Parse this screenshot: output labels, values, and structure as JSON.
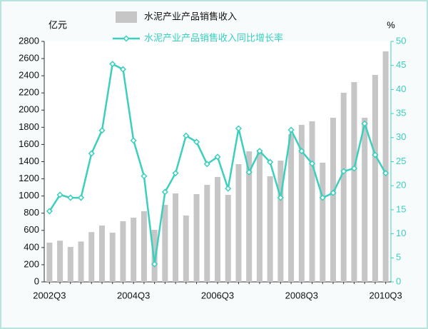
{
  "chart_data": {
    "type": "bar_line",
    "y_unit": "亿元",
    "y2_unit": "%",
    "categories": [
      "2002Q3",
      null,
      null,
      null,
      null,
      null,
      null,
      null,
      "2004Q3",
      null,
      null,
      null,
      null,
      null,
      null,
      null,
      "2006Q3",
      null,
      null,
      null,
      null,
      null,
      null,
      null,
      "2008Q3",
      null,
      null,
      null,
      null,
      null,
      null,
      null,
      "2010Q3"
    ],
    "series": [
      {
        "name": "水泥产业产品销售收入",
        "type": "bar",
        "color": "#c6c6c6",
        "values": [
          457,
          480,
          407,
          470,
          580,
          656,
          573,
          706,
          748,
          823,
          606,
          897,
          1030,
          773,
          1022,
          1130,
          1221,
          1014,
          1371,
          1520,
          1537,
          1230,
          1412,
          1720,
          1828,
          1870,
          1388,
          1911,
          2202,
          2326,
          1911,
          2410,
          2684
        ]
      },
      {
        "name": "水泥产业产品销售收入同比增长率",
        "type": "line",
        "axis": "y2",
        "color": "#3ccfbe",
        "values": [
          14.7,
          18.1,
          17.5,
          17.5,
          26.7,
          31.5,
          45.3,
          44.2,
          29.4,
          22,
          3.7,
          18.7,
          22.6,
          30.4,
          29.1,
          24.5,
          26,
          19.4,
          31.9,
          22.8,
          27.2,
          24.9,
          17.5,
          31.6,
          27.2,
          24.6,
          17.5,
          18.5,
          23,
          23.6,
          32.9,
          26.4,
          22.6
        ]
      }
    ],
    "ylim": [
      0,
      2800
    ],
    "yticks": [
      0,
      200,
      400,
      600,
      800,
      1000,
      1200,
      1400,
      1600,
      1800,
      2000,
      2200,
      2400,
      2600,
      2800
    ],
    "y2lim": [
      0,
      50
    ],
    "y2ticks": [
      0,
      5,
      10,
      15,
      20,
      25,
      30,
      35,
      40,
      45,
      50
    ],
    "grid": false
  }
}
